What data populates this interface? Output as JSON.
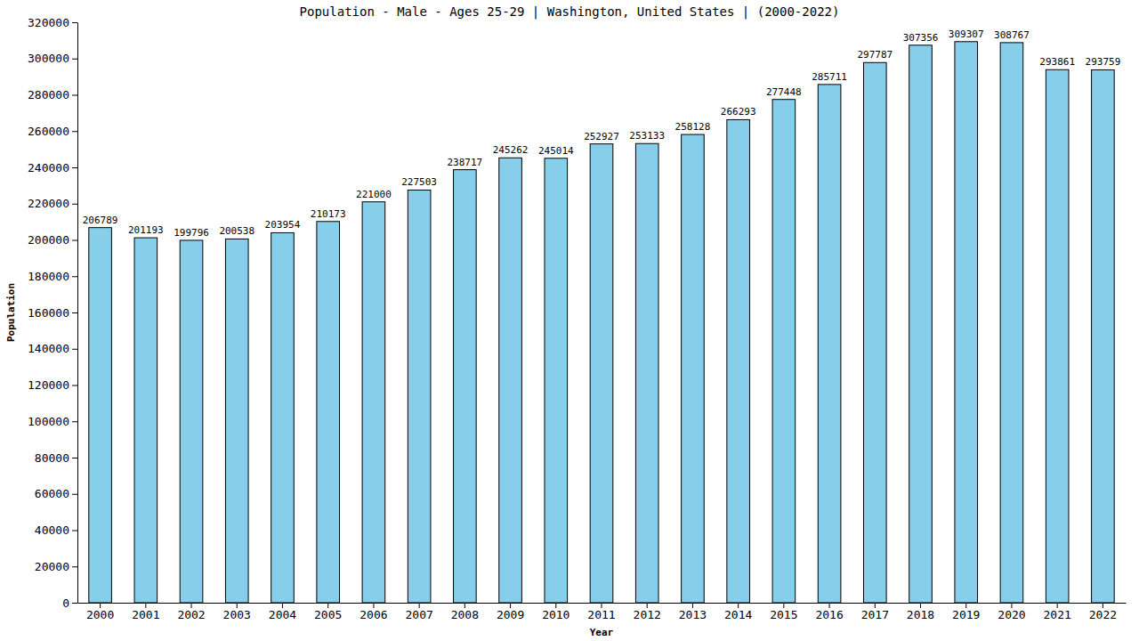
{
  "chart_data": {
    "type": "bar",
    "title": "Population - Male - Ages 25-29 | Washington, United States |  (2000-2022)",
    "x_label": "Year",
    "y_label": "Population",
    "categories": [
      "2000",
      "2001",
      "2002",
      "2003",
      "2004",
      "2005",
      "2006",
      "2007",
      "2008",
      "2009",
      "2010",
      "2011",
      "2012",
      "2013",
      "2014",
      "2015",
      "2016",
      "2017",
      "2018",
      "2019",
      "2020",
      "2021",
      "2022"
    ],
    "values": [
      206789,
      201193,
      199796,
      200538,
      203954,
      210173,
      221000,
      227503,
      238717,
      245262,
      245014,
      252927,
      253133,
      258128,
      266293,
      277448,
      285711,
      297787,
      307356,
      309307,
      308767,
      293861,
      293759
    ],
    "color": "#87ceeb",
    "ylim": [
      0,
      320000
    ],
    "yticks": [
      0,
      20000,
      40000,
      60000,
      80000,
      100000,
      120000,
      140000,
      160000,
      180000,
      200000,
      220000,
      240000,
      260000,
      280000,
      300000,
      320000
    ],
    "grid": false,
    "data_labels": true
  }
}
